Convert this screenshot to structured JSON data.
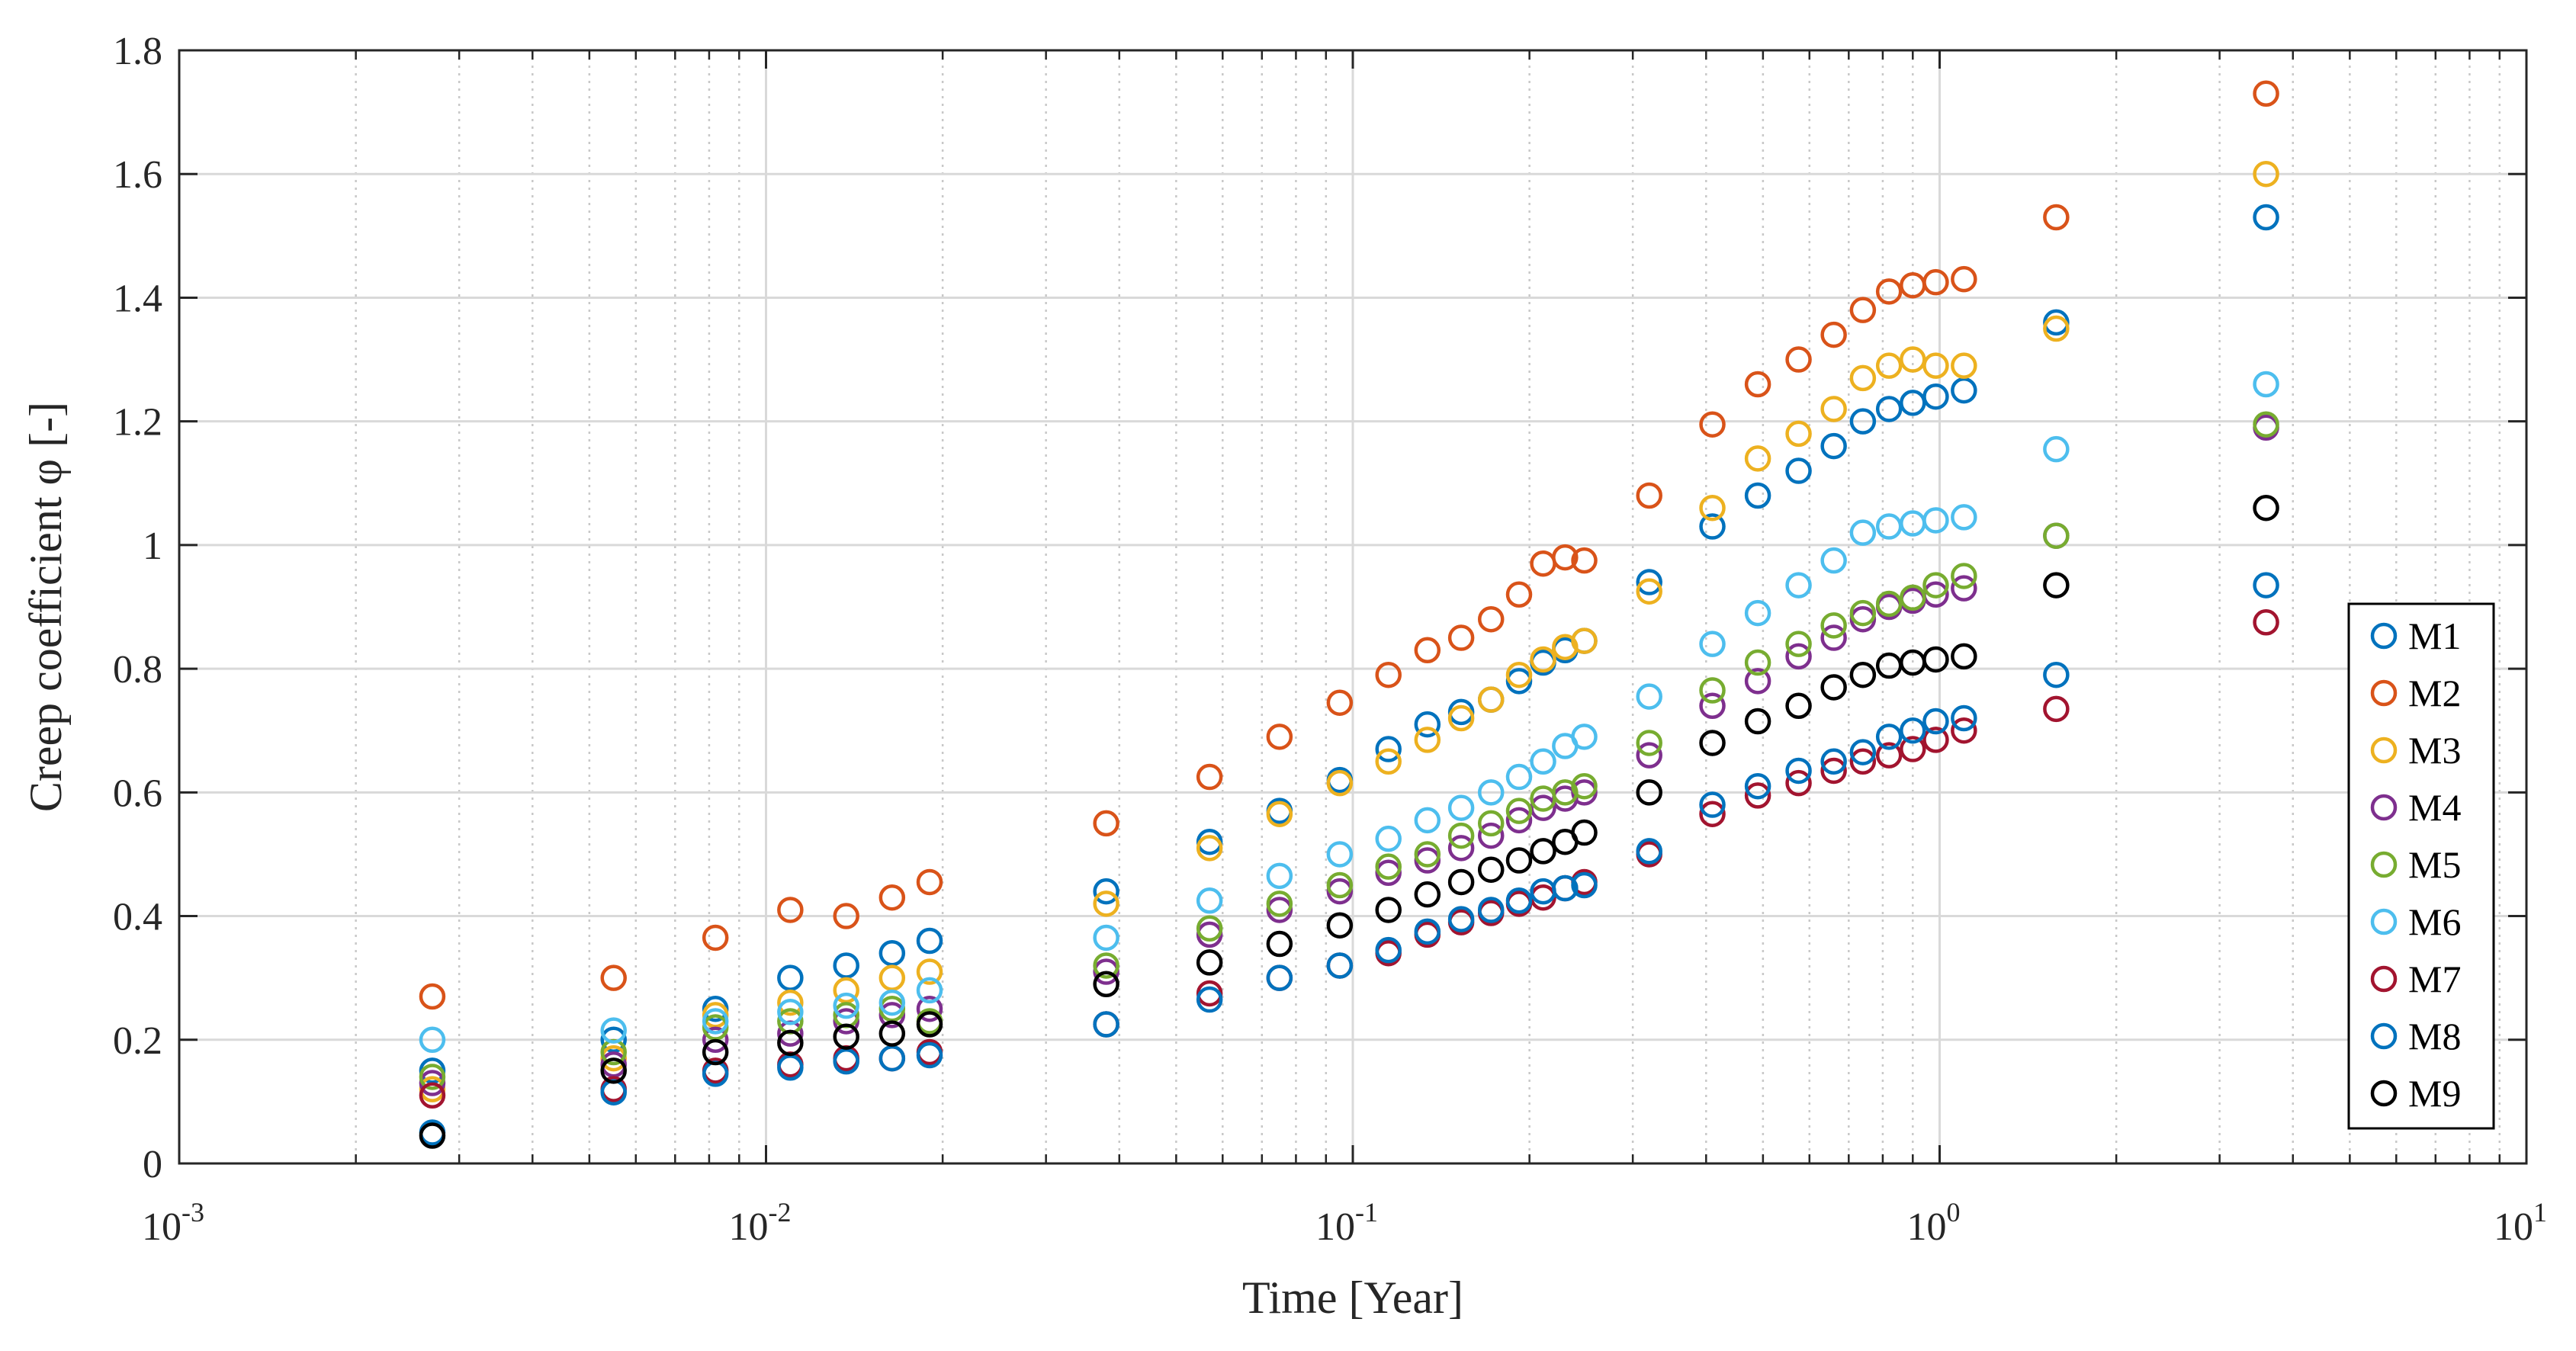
{
  "chart_data": {
    "type": "scatter",
    "xscale": "log",
    "xlim": [
      0.001,
      10
    ],
    "ylim": [
      0,
      1.8
    ],
    "xlabel": "Time [Year]",
    "ylabel": "Creep coefficient φ [-]",
    "xticks": [
      {
        "base": "10",
        "exp": "-3",
        "value": 0.001
      },
      {
        "base": "10",
        "exp": "-2",
        "value": 0.01
      },
      {
        "base": "10",
        "exp": "-1",
        "value": 0.1
      },
      {
        "base": "10",
        "exp": "0",
        "value": 1
      },
      {
        "base": "10",
        "exp": "1",
        "value": 10
      }
    ],
    "yticks": [
      {
        "label": "0",
        "value": 0
      },
      {
        "label": "0.2",
        "value": 0.2
      },
      {
        "label": "0.4",
        "value": 0.4
      },
      {
        "label": "0.6",
        "value": 0.6
      },
      {
        "label": "0.8",
        "value": 0.8
      },
      {
        "label": "1",
        "value": 1
      },
      {
        "label": "1.2",
        "value": 1.2
      },
      {
        "label": "1.4",
        "value": 1.4
      },
      {
        "label": "1.6",
        "value": 1.6
      },
      {
        "label": "1.8",
        "value": 1.8
      }
    ],
    "grid": true,
    "legend_position": "bottom-right",
    "x": [
      0.0027,
      0.0055,
      0.0082,
      0.011,
      0.0137,
      0.0164,
      0.019,
      0.038,
      0.057,
      0.075,
      0.095,
      0.115,
      0.134,
      0.153,
      0.172,
      0.192,
      0.211,
      0.23,
      0.248,
      0.32,
      0.41,
      0.49,
      0.575,
      0.66,
      0.74,
      0.82,
      0.9,
      0.985,
      1.1,
      1.58,
      3.6
    ],
    "series": [
      {
        "name": "M1",
        "color": "#0072BD",
        "values": [
          0.15,
          0.2,
          0.25,
          0.3,
          0.32,
          0.34,
          0.36,
          0.44,
          0.52,
          0.57,
          0.62,
          0.67,
          0.71,
          0.73,
          0.75,
          0.78,
          0.81,
          0.83,
          0.845,
          0.94,
          1.03,
          1.08,
          1.12,
          1.16,
          1.2,
          1.22,
          1.23,
          1.24,
          1.25,
          1.36,
          1.53
        ]
      },
      {
        "name": "M2",
        "color": "#D95319",
        "values": [
          0.27,
          0.3,
          0.365,
          0.41,
          0.4,
          0.43,
          0.455,
          0.55,
          0.625,
          0.69,
          0.745,
          0.79,
          0.83,
          0.85,
          0.88,
          0.92,
          0.97,
          0.98,
          0.975,
          1.08,
          1.195,
          1.26,
          1.3,
          1.34,
          1.38,
          1.41,
          1.42,
          1.425,
          1.43,
          1.53,
          1.73
        ]
      },
      {
        "name": "M3",
        "color": "#EDB120",
        "values": [
          0.12,
          0.17,
          0.24,
          0.26,
          0.28,
          0.3,
          0.31,
          0.42,
          0.51,
          0.565,
          0.615,
          0.65,
          0.685,
          0.72,
          0.75,
          0.79,
          0.815,
          0.835,
          0.845,
          0.925,
          1.06,
          1.14,
          1.18,
          1.22,
          1.27,
          1.29,
          1.3,
          1.29,
          1.29,
          1.35,
          1.6
        ]
      },
      {
        "name": "M4",
        "color": "#7E2F8E",
        "values": [
          0.13,
          0.16,
          0.2,
          0.21,
          0.23,
          0.24,
          0.25,
          0.31,
          0.37,
          0.41,
          0.44,
          0.47,
          0.49,
          0.51,
          0.53,
          0.555,
          0.575,
          0.59,
          0.6,
          0.66,
          0.74,
          0.78,
          0.82,
          0.85,
          0.88,
          0.9,
          0.91,
          0.92,
          0.93,
          1.015,
          1.19
        ]
      },
      {
        "name": "M5",
        "color": "#77AC30",
        "values": [
          0.14,
          0.18,
          0.22,
          0.23,
          0.24,
          0.25,
          0.23,
          0.32,
          0.38,
          0.42,
          0.45,
          0.48,
          0.5,
          0.53,
          0.55,
          0.57,
          0.59,
          0.6,
          0.61,
          0.68,
          0.765,
          0.81,
          0.84,
          0.87,
          0.89,
          0.905,
          0.915,
          0.935,
          0.95,
          1.015,
          1.195
        ]
      },
      {
        "name": "M6",
        "color": "#4DBEEE",
        "values": [
          0.2,
          0.215,
          0.23,
          0.245,
          0.255,
          0.26,
          0.28,
          0.365,
          0.425,
          0.465,
          0.5,
          0.525,
          0.555,
          0.575,
          0.6,
          0.625,
          0.65,
          0.675,
          0.69,
          0.755,
          0.84,
          0.89,
          0.935,
          0.975,
          1.02,
          1.03,
          1.035,
          1.04,
          1.045,
          1.155,
          1.26
        ]
      },
      {
        "name": "M7",
        "color": "#A2142F",
        "values": [
          0.11,
          0.12,
          0.15,
          0.16,
          0.17,
          0.17,
          0.18,
          0.225,
          0.275,
          0.3,
          0.32,
          0.34,
          0.37,
          0.39,
          0.405,
          0.42,
          0.43,
          0.445,
          0.455,
          0.5,
          0.565,
          0.595,
          0.615,
          0.635,
          0.65,
          0.66,
          0.67,
          0.685,
          0.7,
          0.735,
          0.875
        ]
      },
      {
        "name": "M8",
        "color": "#0072BD",
        "values": [
          0.05,
          0.115,
          0.145,
          0.155,
          0.165,
          0.17,
          0.175,
          0.225,
          0.265,
          0.3,
          0.32,
          0.345,
          0.375,
          0.395,
          0.41,
          0.425,
          0.44,
          0.445,
          0.45,
          0.505,
          0.58,
          0.61,
          0.635,
          0.65,
          0.665,
          0.69,
          0.7,
          0.715,
          0.72,
          0.79,
          0.935
        ]
      },
      {
        "name": "M9",
        "color": "#000000",
        "values": [
          0.045,
          0.15,
          0.18,
          0.195,
          0.205,
          0.21,
          0.225,
          0.29,
          0.325,
          0.355,
          0.385,
          0.41,
          0.435,
          0.455,
          0.475,
          0.49,
          0.505,
          0.52,
          0.535,
          0.6,
          0.68,
          0.715,
          0.74,
          0.77,
          0.79,
          0.805,
          0.81,
          0.815,
          0.82,
          0.935,
          1.06
        ]
      }
    ]
  }
}
